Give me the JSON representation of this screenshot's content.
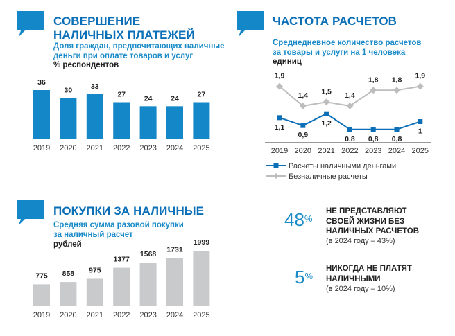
{
  "colors": {
    "accent": "#0a6fb7",
    "bar_blue": "#1487c8",
    "bar_gray": "#c9cacc",
    "line_gray": "#bdbdbd"
  },
  "panel1": {
    "title_line1": "СОВЕРШЕНИЕ",
    "title_line2": "НАЛИЧНЫХ ПЛАТЕЖЕЙ",
    "subtitle_line1": "Доля граждан, предпочитающих наличные",
    "subtitle_line2": "деньги при оплате товаров и услуг",
    "unit": "% респондентов"
  },
  "panel2": {
    "title": "ЧАСТОТА РАСЧЕТОВ",
    "subtitle_line1": "Среднедневное количество расчетов",
    "subtitle_line2": "за товары и услуги на 1 человека",
    "unit": "единиц"
  },
  "panel3": {
    "title": "ПОКУПКИ ЗА НАЛИЧНЫЕ",
    "subtitle_line1": "Средняя сумма разовой покупки",
    "subtitle_line2": "за наличный расчет",
    "unit": "рублей"
  },
  "stats": [
    {
      "value": "48",
      "pct": "%",
      "line1": "НЕ ПРЕДСТАВЛЯЮТ",
      "line2": "СВОЕЙ ЖИЗНИ БЕЗ",
      "line3": "НАЛИЧНЫХ РАСЧЕТОВ",
      "note": "(в 2024 году – 43%)"
    },
    {
      "value": "5",
      "pct": "%",
      "line1": "НИКОГДА НЕ ПЛАТЯТ",
      "line2": "НАЛИЧНЫМИ",
      "note": "(в 2024 году – 10%)"
    }
  ],
  "chart_data": [
    {
      "type": "bar",
      "categories": [
        "2019",
        "2020",
        "2021",
        "2022",
        "2023",
        "2024",
        "2025"
      ],
      "values": [
        36,
        30,
        33,
        27,
        24,
        24,
        27
      ],
      "labels": [
        "36",
        "30",
        "33",
        "27",
        "24",
        "24",
        "27"
      ]
    },
    {
      "type": "line",
      "categories": [
        "2019",
        "2020",
        "2021",
        "2022",
        "2023",
        "2024",
        "2025"
      ],
      "series": [
        {
          "name": "Расчеты наличными деньгами",
          "values": [
            1.1,
            0.9,
            1.2,
            0.8,
            0.8,
            0.8,
            1.0
          ],
          "labels": [
            "1,1",
            "0,9",
            "1,2",
            "0,8",
            "0,8",
            "0,8",
            "1"
          ]
        },
        {
          "name": "Безналичные расчеты",
          "values": [
            1.9,
            1.4,
            1.5,
            1.4,
            1.8,
            1.8,
            1.9
          ],
          "labels": [
            "1,9",
            "1,4",
            "1,5",
            "1,4",
            "1,8",
            "1,8",
            "1,9"
          ]
        }
      ],
      "legend": "bottom"
    },
    {
      "type": "bar",
      "categories": [
        "2019",
        "2020",
        "2021",
        "2022",
        "2023",
        "2024",
        "2025"
      ],
      "values": [
        775,
        858,
        975,
        1377,
        1568,
        1731,
        1999
      ],
      "labels": [
        "775",
        "858",
        "975",
        "1377",
        "1568",
        "1731",
        "1999"
      ]
    }
  ]
}
